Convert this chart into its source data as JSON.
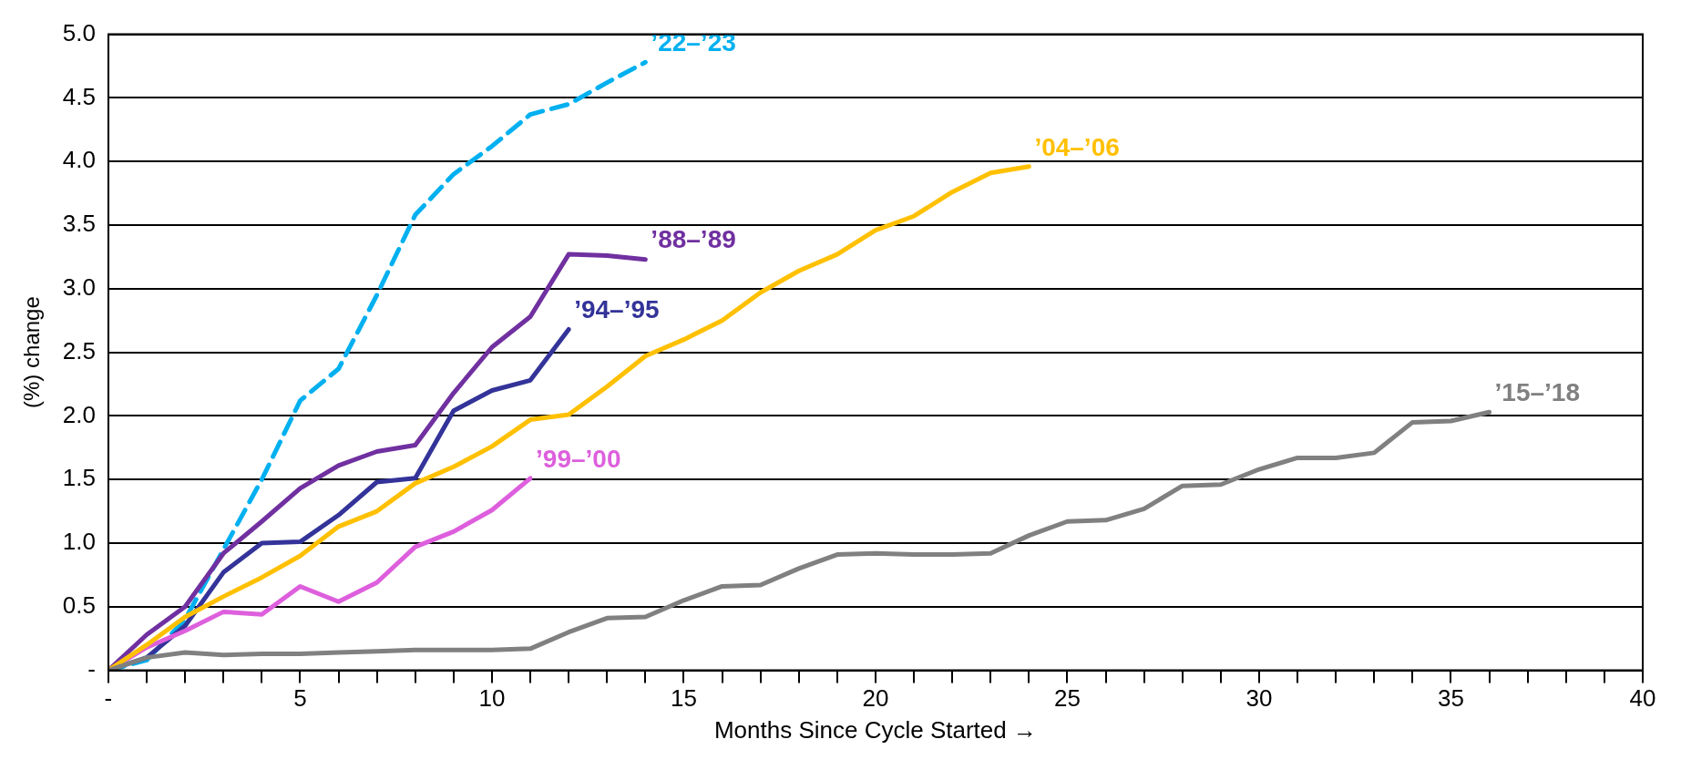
{
  "chart_data": {
    "type": "line",
    "xlabel": "Months Since Cycle Started →",
    "ylabel": "(%) change",
    "xlim": [
      0,
      40
    ],
    "ylim": [
      0,
      5
    ],
    "xticks": [
      {
        "value": 0,
        "label": "-"
      },
      {
        "value": 1,
        "label": null
      },
      {
        "value": 2,
        "label": null
      },
      {
        "value": 3,
        "label": null
      },
      {
        "value": 4,
        "label": null
      },
      5,
      {
        "value": 6,
        "label": null
      },
      {
        "value": 7,
        "label": null
      },
      {
        "value": 8,
        "label": null
      },
      {
        "value": 9,
        "label": null
      },
      10,
      {
        "value": 11,
        "label": null
      },
      {
        "value": 12,
        "label": null
      },
      {
        "value": 13,
        "label": null
      },
      {
        "value": 14,
        "label": null
      },
      15,
      {
        "value": 16,
        "label": null
      },
      {
        "value": 17,
        "label": null
      },
      {
        "value": 18,
        "label": null
      },
      {
        "value": 19,
        "label": null
      },
      20,
      {
        "value": 21,
        "label": null
      },
      {
        "value": 22,
        "label": null
      },
      {
        "value": 23,
        "label": null
      },
      {
        "value": 24,
        "label": null
      },
      25,
      {
        "value": 26,
        "label": null
      },
      {
        "value": 27,
        "label": null
      },
      {
        "value": 28,
        "label": null
      },
      {
        "value": 29,
        "label": null
      },
      30,
      {
        "value": 31,
        "label": null
      },
      {
        "value": 32,
        "label": null
      },
      {
        "value": 33,
        "label": null
      },
      {
        "value": 34,
        "label": null
      },
      35,
      {
        "value": 36,
        "label": null
      },
      {
        "value": 37,
        "label": null
      },
      {
        "value": 38,
        "label": null
      },
      {
        "value": 39,
        "label": null
      },
      40
    ],
    "yticks": [
      {
        "value": 0,
        "label": "-"
      },
      {
        "value": 0.5,
        "label": "0.5"
      },
      {
        "value": 1,
        "label": "1.0"
      },
      {
        "value": 1.5,
        "label": "1.5"
      },
      {
        "value": 2,
        "label": "2.0"
      },
      {
        "value": 2.5,
        "label": "2.5"
      },
      {
        "value": 3,
        "label": "3.0"
      },
      {
        "value": 3.5,
        "label": "3.5"
      },
      {
        "value": 4,
        "label": "4.0"
      },
      {
        "value": 4.5,
        "label": "4.5"
      },
      {
        "value": 5,
        "label": "5.0"
      }
    ],
    "grid": "y",
    "legend": false,
    "marker": "none",
    "series": [
      {
        "name": "’15–’18",
        "color": "#808080",
        "x": [
          0,
          1,
          2,
          3,
          4,
          5,
          6,
          7,
          8,
          9,
          10,
          11,
          12,
          13,
          14,
          15,
          16,
          17,
          18,
          19,
          20,
          21,
          22,
          23,
          24,
          25,
          26,
          27,
          28,
          29,
          30,
          31,
          32,
          33,
          34,
          35,
          36
        ],
        "values": [
          0,
          0.1,
          0.14,
          0.12,
          0.13,
          0.13,
          0.14,
          0.15,
          0.16,
          0.16,
          0.16,
          0.17,
          0.3,
          0.41,
          0.42,
          0.55,
          0.66,
          0.67,
          0.8,
          0.91,
          0.92,
          0.91,
          0.91,
          0.92,
          1.06,
          1.17,
          1.18,
          1.27,
          1.45,
          1.46,
          1.58,
          1.67,
          1.67,
          1.71,
          1.95,
          1.96,
          2.03
        ]
      },
      {
        "name": "’04–’06",
        "color": "#ffc000",
        "x": [
          0,
          1,
          2,
          3,
          4,
          5,
          6,
          7,
          8,
          9,
          10,
          11,
          12,
          13,
          14,
          15,
          16,
          17,
          18,
          19,
          20,
          21,
          22,
          23,
          24
        ],
        "values": [
          0,
          0.2,
          0.42,
          0.58,
          0.73,
          0.9,
          1.13,
          1.25,
          1.47,
          1.6,
          1.76,
          1.97,
          2.01,
          2.23,
          2.47,
          2.6,
          2.75,
          2.97,
          3.14,
          3.27,
          3.46,
          3.57,
          3.76,
          3.91,
          3.96
        ]
      },
      {
        "name": "’99–’00",
        "color": "#dd5fdd",
        "x": [
          0,
          1,
          2,
          3,
          4,
          5,
          6,
          7,
          8,
          9,
          10,
          11
        ],
        "values": [
          0,
          0.18,
          0.31,
          0.46,
          0.44,
          0.66,
          0.54,
          0.69,
          0.97,
          1.09,
          1.26,
          1.51
        ]
      },
      {
        "name": "’94–’95",
        "color": "#333399",
        "x": [
          0,
          1,
          2,
          3,
          4,
          5,
          6,
          7,
          8,
          9,
          10,
          11,
          12
        ],
        "values": [
          0,
          0.1,
          0.35,
          0.77,
          1.0,
          1.01,
          1.22,
          1.48,
          1.51,
          2.04,
          2.2,
          2.28,
          2.68
        ]
      },
      {
        "name": "’88–’89",
        "color": "#7030a0",
        "x": [
          0,
          1,
          2,
          3,
          4,
          5,
          6,
          7,
          8,
          9,
          10,
          11,
          12,
          13,
          14
        ],
        "values": [
          0,
          0.28,
          0.5,
          0.92,
          1.17,
          1.43,
          1.61,
          1.72,
          1.77,
          2.18,
          2.54,
          2.78,
          3.27,
          3.26,
          3.23
        ]
      },
      {
        "name": "’22–’23",
        "color": "#00b0f0",
        "line_style": "dashed",
        "x": [
          0,
          1,
          2,
          3,
          4,
          5,
          6,
          7,
          8,
          9,
          10,
          11,
          12,
          13,
          14
        ],
        "values": [
          0,
          0.08,
          0.4,
          0.95,
          1.5,
          2.12,
          2.37,
          2.95,
          3.58,
          3.9,
          4.12,
          4.37,
          4.45,
          4.62,
          4.78
        ]
      }
    ]
  }
}
